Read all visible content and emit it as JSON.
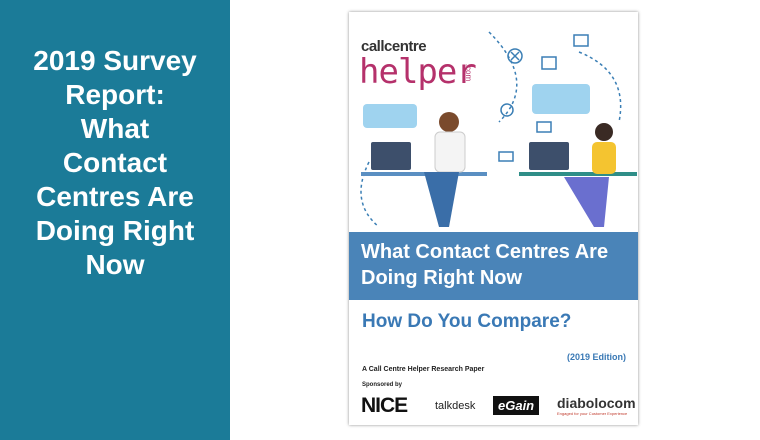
{
  "panel": {
    "title": "2019 Survey Report: What Contact Centres Are Doing Right Now"
  },
  "cover": {
    "logo": {
      "top": "callcentre",
      "main": "helper",
      "suffix": ".com"
    },
    "banner": "What Contact Centres Are Doing Right Now",
    "subtitle": "How Do You Compare?",
    "edition": "(2019 Edition)",
    "paper": "A Call Centre Helper Research Paper",
    "sponsored_label": "Sponsored by",
    "sponsors": [
      "NICE",
      "talkdesk",
      "eGain",
      "diabolocom"
    ],
    "sponsor_tagline": "Engaged for your Customer Experience"
  }
}
